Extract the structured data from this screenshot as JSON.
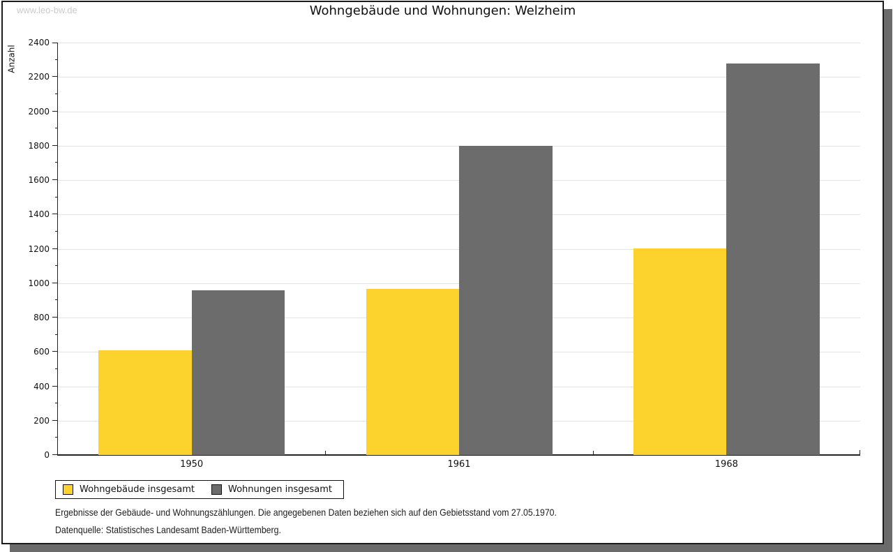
{
  "watermark": "www.leo-bw.de",
  "title": "Wohngebäude und Wohnungen: Welzheim",
  "footer": {
    "line1": "Ergebnisse der Gebäude- und Wohnungszählungen. Die angegebenen Daten beziehen sich auf den Gebietsstand vom 27.05.1970.",
    "line2": "Datenquelle: Statistisches Landesamt Baden-Württemberg."
  },
  "colors": {
    "bar_yellow": "#fcd32d",
    "bar_gray": "#6c6c6c",
    "gridline": "#e3e3e3",
    "axis": "#222222",
    "card_border": "#1b1b1b",
    "shadow": "#6b6b6b",
    "watermark": "#cbcbcb"
  },
  "chart_data": {
    "type": "bar",
    "title": "Wohngebäude und Wohnungen: Welzheim",
    "categories": [
      "1950",
      "1961",
      "1968"
    ],
    "series": [
      {
        "name": "Wohngebäude insgesamt",
        "color": "#fcd32d",
        "values": [
          610,
          967,
          1203
        ]
      },
      {
        "name": "Wohnungen insgesamt",
        "color": "#6c6c6c",
        "values": [
          957,
          1800,
          2280
        ]
      }
    ],
    "xlabel": "",
    "ylabel": "Anzahl",
    "ylim": [
      0,
      2400
    ],
    "ytick_step": 200,
    "ytick_minor": 100,
    "grid": true,
    "legend_position": "bottom-left"
  }
}
